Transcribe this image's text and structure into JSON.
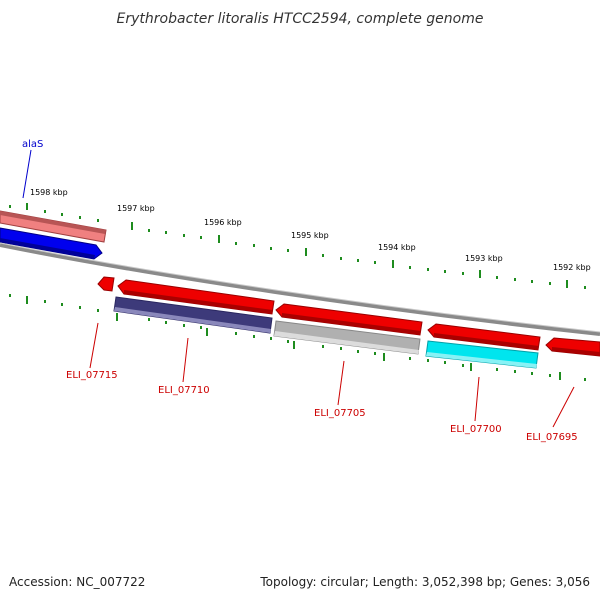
{
  "title": "Erythrobacter litoralis HTCC2594, complete genome",
  "footer": {
    "accession": "Accession: NC_007722",
    "summary": "Topology: circular; Length: 3,052,398 bp; Genes: 3,056"
  },
  "scale": {
    "tick_labels": [
      "1598 kbp",
      "1597 kbp",
      "1596 kbp",
      "1595 kbp",
      "1594 kbp",
      "1593 kbp",
      "1592 kbp"
    ]
  },
  "genes": [
    {
      "label": "alaS",
      "strand": "+",
      "color": "#0000ee",
      "label_color": "#0000cc"
    },
    {
      "label": "",
      "strand": "+",
      "color": "#f08080",
      "label_color": ""
    },
    {
      "label": "ELI_07715",
      "strand": "-",
      "color": "#ee0000",
      "label_color": "#cc0000"
    },
    {
      "label": "ELI_07710",
      "strand": "-",
      "color": "#ee0000",
      "label_color": "#cc0000"
    },
    {
      "label": "",
      "strand": "-",
      "color": "#3d3a7a",
      "label_color": ""
    },
    {
      "label": "ELI_07705",
      "strand": "-",
      "color": "#ee0000",
      "label_color": "#cc0000"
    },
    {
      "label": "",
      "strand": "-",
      "color": "#b0b0b0",
      "label_color": ""
    },
    {
      "label": "ELI_07700",
      "strand": "-",
      "color": "#ee0000",
      "label_color": "#cc0000"
    },
    {
      "label": "",
      "strand": "-",
      "color": "#00e5ee",
      "label_color": ""
    },
    {
      "label": "ELI_07695",
      "strand": "-",
      "color": "#ee0000",
      "label_color": "#cc0000"
    }
  ],
  "colors": {
    "backbone": "#8a8a8a",
    "ticks": "#1e8c1e"
  }
}
